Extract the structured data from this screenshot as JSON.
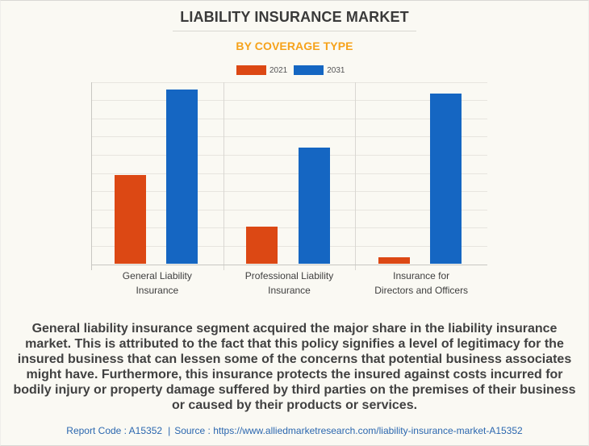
{
  "header": {
    "title": "LIABILITY INSURANCE MARKET",
    "subtitle": "BY COVERAGE TYPE"
  },
  "legend": [
    {
      "label": "2021",
      "color": "#DC4814"
    },
    {
      "label": "2031",
      "color": "#1566C2"
    }
  ],
  "chart_data": {
    "type": "bar",
    "title": "LIABILITY INSURANCE MARKET",
    "subtitle": "BY COVERAGE TYPE",
    "categories": [
      "General Liability Insurance",
      "Professional Liability Insurance",
      "Insurance for Directors and Officers"
    ],
    "category_label_lines": [
      [
        "General Liability",
        "Insurance"
      ],
      [
        "Professional Liability",
        "Insurance"
      ],
      [
        "Insurance for",
        "Directors and Officers"
      ]
    ],
    "series": [
      {
        "name": "2021",
        "color": "#DC4814",
        "values": [
          4.87,
          2.07,
          0.36
        ]
      },
      {
        "name": "2031",
        "color": "#1566C2",
        "values": [
          9.6,
          6.41,
          9.37
        ]
      }
    ],
    "ylim": [
      0,
      10
    ],
    "gridline_step": 1,
    "y_axis_labels_visible": false,
    "legend_position": "top",
    "grid": true
  },
  "description": "General liability insurance segment acquired the major share in the liability insurance market. This is attributed to the fact that this policy signifies a level of legitimacy for the insured business that can lessen some of the concerns that potential business associates might have. Furthermore, this insurance protects the insured against costs incurred for bodily injury or property damage suffered by third parties on the premises of their business or caused by their products or services.",
  "footer": {
    "report_code": "Report Code : A15352",
    "separator": "|",
    "source": "Source : https://www.alliedmarketresearch.com/liability-insurance-market-A15352"
  }
}
